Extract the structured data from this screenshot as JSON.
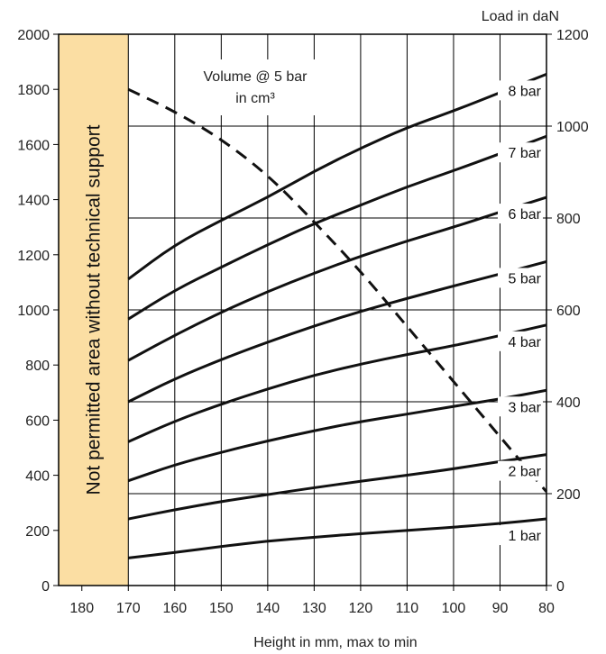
{
  "chart_data": {
    "type": "line",
    "xlabel": "Height in mm, max to min",
    "ylabel": "",
    "y2label": "Load in daN",
    "x_reversed": true,
    "xlim": [
      185,
      80
    ],
    "ylim": [
      0,
      2000
    ],
    "y2lim": [
      0,
      1200
    ],
    "xticks": [
      180,
      170,
      160,
      150,
      140,
      130,
      120,
      110,
      100,
      90,
      80
    ],
    "yticks": [
      0,
      200,
      400,
      600,
      800,
      1000,
      1200,
      1400,
      1600,
      1800,
      2000
    ],
    "y2ticks": [
      0,
      200,
      400,
      600,
      800,
      1000,
      1200
    ],
    "grid": true,
    "restricted_zone": {
      "x_from": 185,
      "x_to": 170,
      "label": "Not permitted area without technical support",
      "color": "#fbdea3"
    },
    "annotation": {
      "line1": "Volume @ 5 bar",
      "line2": "in cm³"
    },
    "x": [
      170,
      160,
      150,
      140,
      130,
      120,
      110,
      100,
      90,
      80
    ],
    "series": [
      {
        "name": "8 bar",
        "axis": "right",
        "values": [
          667,
          742,
          795,
          845,
          902,
          952,
          997,
          1033,
          1073,
          1113
        ]
      },
      {
        "name": "7 bar",
        "axis": "right",
        "values": [
          580,
          643,
          693,
          742,
          788,
          828,
          868,
          903,
          940,
          978
        ]
      },
      {
        "name": "6 bar",
        "axis": "right",
        "values": [
          490,
          545,
          595,
          640,
          680,
          717,
          750,
          780,
          813,
          845
        ]
      },
      {
        "name": "5 bar",
        "axis": "right",
        "values": [
          400,
          450,
          492,
          530,
          565,
          597,
          625,
          652,
          678,
          705
        ]
      },
      {
        "name": "4 bar",
        "axis": "right",
        "values": [
          313,
          358,
          395,
          428,
          458,
          482,
          503,
          522,
          544,
          567
        ]
      },
      {
        "name": "3 bar",
        "axis": "right",
        "values": [
          228,
          263,
          290,
          315,
          337,
          357,
          373,
          390,
          406,
          425
        ]
      },
      {
        "name": "2 bar",
        "axis": "right",
        "values": [
          145,
          165,
          183,
          198,
          213,
          227,
          240,
          254,
          270,
          285
        ]
      },
      {
        "name": "1 bar",
        "axis": "right",
        "values": [
          60,
          72,
          85,
          97,
          105,
          113,
          120,
          127,
          135,
          145
        ]
      },
      {
        "name": "Volume @ 5 bar",
        "axis": "left",
        "dashed": true,
        "values": [
          1800,
          1720,
          1620,
          1490,
          1320,
          1140,
          940,
          740,
          540,
          340
        ]
      }
    ]
  }
}
